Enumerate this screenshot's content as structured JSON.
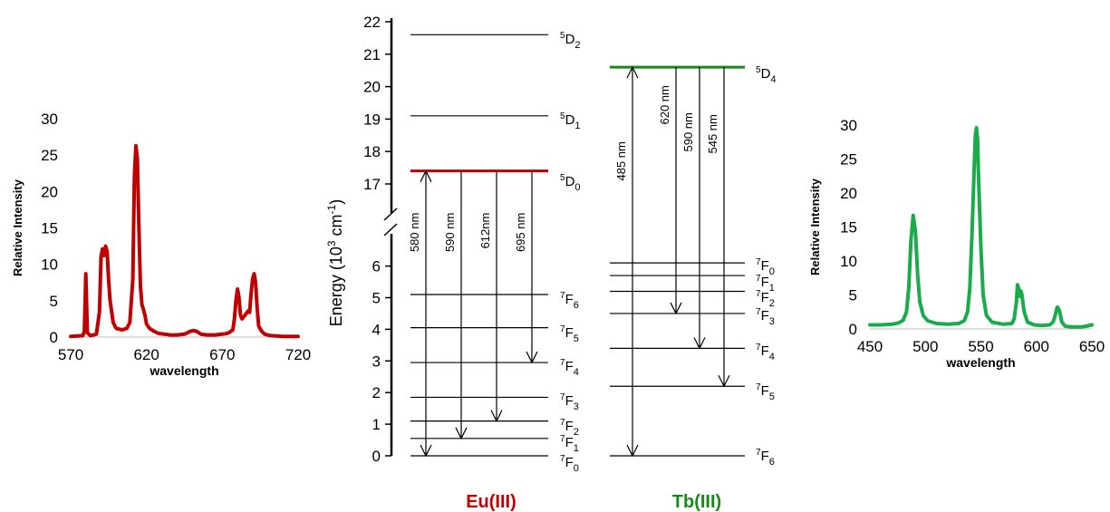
{
  "colors": {
    "eu": "#c00000",
    "tb": "#1aab4b",
    "tb_level": "#188818",
    "ink": "#000000"
  },
  "chart_data": [
    {
      "id": "eu_spectrum",
      "type": "line",
      "xlabel": "wavelength",
      "ylabel": "Relative Intensity",
      "xlim": [
        570,
        720
      ],
      "ylim": [
        0,
        30
      ],
      "xticks": [
        570,
        620,
        670,
        720
      ],
      "yticks": [
        0,
        5,
        10,
        15,
        20,
        25,
        30
      ],
      "series": [
        {
          "color": "#c00000",
          "points": [
            [
              570,
              0.1
            ],
            [
              578,
              0.2
            ],
            [
              579,
              0.8
            ],
            [
              580,
              8.7
            ],
            [
              581,
              0.6
            ],
            [
              583,
              0.2
            ],
            [
              587,
              0.4
            ],
            [
              589,
              3.5
            ],
            [
              590,
              11.0
            ],
            [
              591,
              12.1
            ],
            [
              592,
              11.2
            ],
            [
              593,
              12.5
            ],
            [
              594,
              11.8
            ],
            [
              595,
              8.0
            ],
            [
              596,
              5.0
            ],
            [
              598,
              2.0
            ],
            [
              600,
              1.2
            ],
            [
              604,
              1.0
            ],
            [
              607,
              1.2
            ],
            [
              609,
              2.0
            ],
            [
              611,
              8.0
            ],
            [
              612,
              22.0
            ],
            [
              613,
              26.3
            ],
            [
              614,
              24.5
            ],
            [
              615,
              15.0
            ],
            [
              616,
              7.0
            ],
            [
              617,
              4.5
            ],
            [
              618,
              3.8
            ],
            [
              619,
              3.0
            ],
            [
              620,
              1.8
            ],
            [
              622,
              1.2
            ],
            [
              625,
              0.8
            ],
            [
              628,
              0.5
            ],
            [
              632,
              0.4
            ],
            [
              636,
              0.3
            ],
            [
              640,
              0.3
            ],
            [
              645,
              0.4
            ],
            [
              649,
              0.8
            ],
            [
              651,
              0.9
            ],
            [
              653,
              0.8
            ],
            [
              656,
              0.4
            ],
            [
              660,
              0.3
            ],
            [
              665,
              0.3
            ],
            [
              670,
              0.4
            ],
            [
              673,
              0.5
            ],
            [
              675,
              0.7
            ],
            [
              677,
              1.0
            ],
            [
              678,
              2.5
            ],
            [
              679,
              5.0
            ],
            [
              680,
              6.6
            ],
            [
              681,
              5.5
            ],
            [
              682,
              3.0
            ],
            [
              683,
              2.5
            ],
            [
              685,
              3.0
            ],
            [
              687,
              3.6
            ],
            [
              688,
              3.4
            ],
            [
              689,
              6.0
            ],
            [
              690,
              8.0
            ],
            [
              691,
              8.7
            ],
            [
              692,
              7.5
            ],
            [
              693,
              4.0
            ],
            [
              694,
              1.5
            ],
            [
              696,
              0.8
            ],
            [
              698,
              0.4
            ],
            [
              702,
              0.2
            ],
            [
              710,
              0.1
            ],
            [
              720,
              0.1
            ]
          ]
        }
      ]
    },
    {
      "id": "tb_spectrum",
      "type": "line",
      "xlabel": "wavelength",
      "ylabel": "Relative Intensity",
      "xlim": [
        450,
        650
      ],
      "ylim": [
        0,
        30
      ],
      "xticks": [
        450,
        500,
        550,
        600,
        650
      ],
      "yticks": [
        0,
        5,
        10,
        15,
        20,
        25,
        30
      ],
      "series": [
        {
          "color": "#1aab4b",
          "points": [
            [
              450,
              0.6
            ],
            [
              460,
              0.6
            ],
            [
              470,
              0.7
            ],
            [
              476,
              0.9
            ],
            [
              480,
              1.3
            ],
            [
              483,
              2.5
            ],
            [
              485,
              6.0
            ],
            [
              487,
              13.0
            ],
            [
              489,
              16.7
            ],
            [
              491,
              14.5
            ],
            [
              493,
              8.0
            ],
            [
              495,
              4.0
            ],
            [
              498,
              2.0
            ],
            [
              502,
              1.2
            ],
            [
              510,
              0.8
            ],
            [
              520,
              0.7
            ],
            [
              530,
              0.8
            ],
            [
              535,
              1.2
            ],
            [
              538,
              2.5
            ],
            [
              540,
              6.0
            ],
            [
              542,
              14.0
            ],
            [
              544,
              24.0
            ],
            [
              545,
              28.5
            ],
            [
              546,
              29.6
            ],
            [
              547,
              28.0
            ],
            [
              548,
              22.0
            ],
            [
              550,
              12.0
            ],
            [
              552,
              5.0
            ],
            [
              555,
              2.0
            ],
            [
              560,
              1.0
            ],
            [
              570,
              0.7
            ],
            [
              578,
              0.8
            ],
            [
              580,
              1.5
            ],
            [
              582,
              4.0
            ],
            [
              583,
              6.5
            ],
            [
              584,
              6.0
            ],
            [
              585,
              4.8
            ],
            [
              586,
              5.6
            ],
            [
              587,
              5.0
            ],
            [
              589,
              2.5
            ],
            [
              592,
              1.0
            ],
            [
              598,
              0.6
            ],
            [
              605,
              0.5
            ],
            [
              612,
              0.6
            ],
            [
              615,
              1.0
            ],
            [
              617,
              2.0
            ],
            [
              618,
              2.8
            ],
            [
              619,
              3.2
            ],
            [
              620,
              3.0
            ],
            [
              621,
              2.5
            ],
            [
              623,
              1.0
            ],
            [
              626,
              0.4
            ],
            [
              632,
              0.3
            ],
            [
              640,
              0.3
            ],
            [
              645,
              0.4
            ],
            [
              650,
              0.6
            ]
          ]
        }
      ]
    }
  ],
  "energy_diagram": {
    "ylabel_main": "Energy (10",
    "ylabel_exp": "3",
    "ylabel_unit": " cm",
    "ylabel_unit_exp": "-1",
    "ylabel_close": ")",
    "ticks_upper": [
      17,
      18,
      19,
      20,
      21,
      22
    ],
    "ticks_lower": [
      0,
      1,
      2,
      3,
      4,
      5,
      6
    ],
    "eu": {
      "name": "Eu(III)",
      "levels": [
        {
          "sup": "5",
          "term": "D",
          "sub": "2",
          "energy": 21.6
        },
        {
          "sup": "5",
          "term": "D",
          "sub": "1",
          "energy": 19.1
        },
        {
          "sup": "5",
          "term": "D",
          "sub": "0",
          "energy": 17.4,
          "emitting": true
        },
        {
          "sup": "7",
          "term": "F",
          "sub": "6",
          "energy": 5.1
        },
        {
          "sup": "7",
          "term": "F",
          "sub": "5",
          "energy": 4.05
        },
        {
          "sup": "7",
          "term": "F",
          "sub": "4",
          "energy": 2.95
        },
        {
          "sup": "7",
          "term": "F",
          "sub": "3",
          "energy": 1.85
        },
        {
          "sup": "7",
          "term": "F",
          "sub": "2",
          "energy": 1.1
        },
        {
          "sup": "7",
          "term": "F",
          "sub": "1",
          "energy": 0.55
        },
        {
          "sup": "7",
          "term": "F",
          "sub": "0",
          "energy": 0.0
        }
      ],
      "transitions": [
        {
          "label": "580 nm",
          "to_energy": 0.0
        },
        {
          "label": "590 nm",
          "to_energy": 0.55
        },
        {
          "label": "612nm",
          "to_energy": 1.1
        },
        {
          "label": "695 nm",
          "to_energy": 2.95
        }
      ]
    },
    "tb": {
      "name": "Tb(III)",
      "levels": [
        {
          "sup": "5",
          "term": "D",
          "sub": "4",
          "energy": 20.6,
          "emitting": true
        },
        {
          "sup": "7",
          "term": "F",
          "sub": "0",
          "energy": 6.1
        },
        {
          "sup": "7",
          "term": "F",
          "sub": "1",
          "energy": 5.7
        },
        {
          "sup": "7",
          "term": "F",
          "sub": "2",
          "energy": 5.2
        },
        {
          "sup": "7",
          "term": "F",
          "sub": "3",
          "energy": 4.5
        },
        {
          "sup": "7",
          "term": "F",
          "sub": "4",
          "energy": 3.4
        },
        {
          "sup": "7",
          "term": "F",
          "sub": "5",
          "energy": 2.2
        },
        {
          "sup": "7",
          "term": "F",
          "sub": "6",
          "energy": 0.0
        }
      ],
      "transitions": [
        {
          "label": "485 nm",
          "to_energy": 0.0
        },
        {
          "label": "620 nm",
          "to_energy": 4.5
        },
        {
          "label": "590 nm",
          "to_energy": 3.4
        },
        {
          "label": "545 nm",
          "to_energy": 2.2
        }
      ]
    }
  }
}
